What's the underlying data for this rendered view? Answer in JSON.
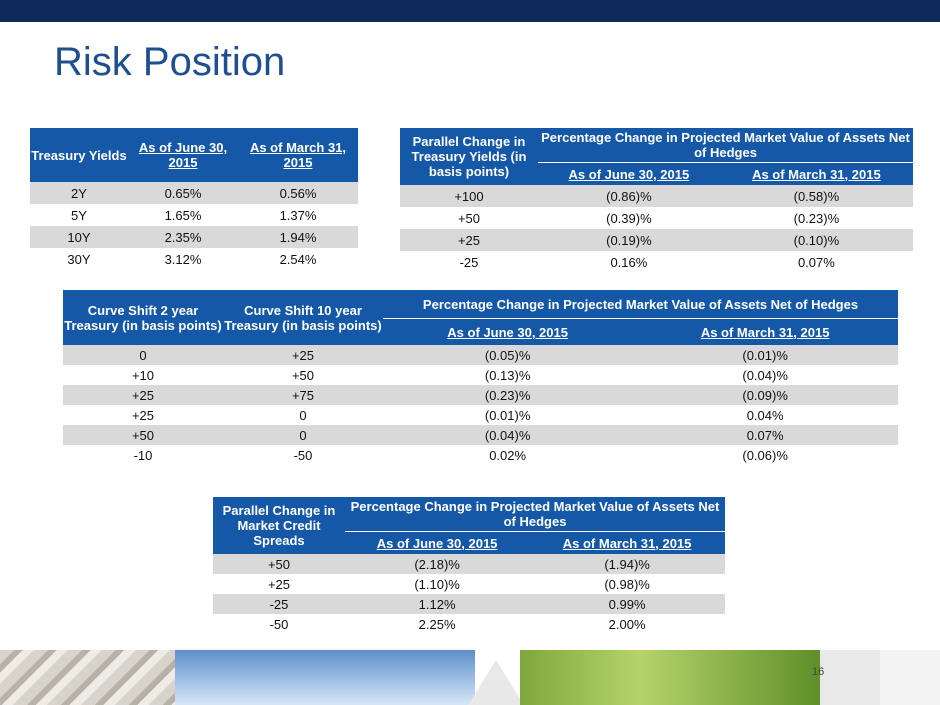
{
  "slide": {
    "title": "Risk Position",
    "page_number": "16"
  },
  "t1": {
    "headers": [
      "Treasury Yields",
      "As of June 30, 2015",
      "As of March 31, 2015"
    ],
    "rows": [
      [
        "2Y",
        "0.65%",
        "0.56%"
      ],
      [
        "5Y",
        "1.65%",
        "1.37%"
      ],
      [
        "10Y",
        "2.35%",
        "1.94%"
      ],
      [
        "30Y",
        "3.12%",
        "2.54%"
      ]
    ]
  },
  "t2": {
    "h_left": "Parallel Change in Treasury Yields (in basis points)",
    "h_group": "Percentage Change in Projected Market Value of Assets Net of Hedges",
    "h_sub": [
      "As of June 30, 2015",
      "As of March 31, 2015"
    ],
    "rows": [
      [
        "+100",
        "(0.86)%",
        "(0.58)%"
      ],
      [
        "+50",
        "(0.39)%",
        "(0.23)%"
      ],
      [
        "+25",
        "(0.19)%",
        "(0.10)%"
      ],
      [
        "-25",
        "0.16%",
        "0.07%"
      ]
    ]
  },
  "t3": {
    "h_col1": "Curve Shift 2 year Treasury (in basis points)",
    "h_col2": "Curve Shift 10 year Treasury (in basis points)",
    "h_group": "Percentage Change in Projected Market Value of Assets Net of Hedges",
    "h_sub": [
      "As of June 30, 2015",
      "As of March 31, 2015"
    ],
    "rows": [
      [
        "0",
        "+25",
        "(0.05)%",
        "(0.01)%"
      ],
      [
        "+10",
        "+50",
        "(0.13)%",
        "(0.04)%"
      ],
      [
        "+25",
        "+75",
        "(0.23)%",
        "(0.09)%"
      ],
      [
        "+25",
        "0",
        "(0.01)%",
        "0.04%"
      ],
      [
        "+50",
        "0",
        "(0.04)%",
        "0.07%"
      ],
      [
        "-10",
        "-50",
        "0.02%",
        "(0.06)%"
      ]
    ]
  },
  "t4": {
    "h_left": "Parallel Change in Market Credit Spreads",
    "h_group": "Percentage Change in Projected Market Value of Assets Net of Hedges",
    "h_sub": [
      "As of June 30, 2015",
      "As of March 31, 2015"
    ],
    "rows": [
      [
        "+50",
        "(2.18)%",
        "(1.94)%"
      ],
      [
        "+25",
        "(1.10)%",
        "(0.98)%"
      ],
      [
        "-25",
        "1.12%",
        "0.99%"
      ],
      [
        "-50",
        "2.25%",
        "2.00%"
      ]
    ]
  }
}
